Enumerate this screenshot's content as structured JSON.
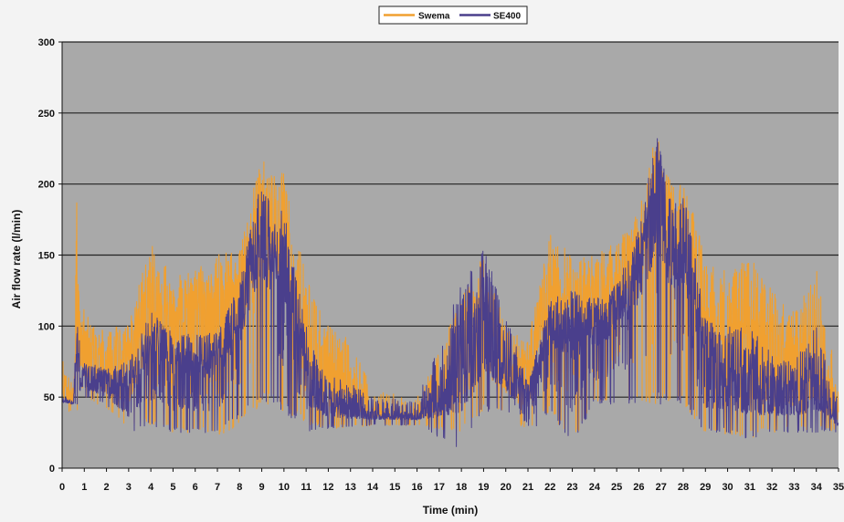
{
  "chart_data": {
    "type": "line",
    "xlabel": "Time (min)",
    "ylabel": "Air flow rate (l/min)",
    "xlim": [
      0,
      35
    ],
    "ylim": [
      0,
      300
    ],
    "x_ticks": [
      0,
      1,
      2,
      3,
      4,
      5,
      6,
      7,
      8,
      9,
      10,
      11,
      12,
      13,
      14,
      15,
      16,
      17,
      18,
      19,
      20,
      21,
      22,
      23,
      24,
      25,
      26,
      27,
      28,
      29,
      30,
      31,
      32,
      33,
      34,
      35
    ],
    "y_ticks": [
      0,
      50,
      100,
      150,
      200,
      250,
      300
    ],
    "grid": "horizontal",
    "legend_position": "top-center",
    "plot_background": "#a9a9a9",
    "page_background": "#f3f3f3",
    "series": [
      {
        "name": "Swema",
        "color": "#f0a030",
        "x": [
          0,
          0.5,
          0.7,
          0.8,
          1.0,
          2.0,
          3.0,
          4.0,
          5.0,
          6.0,
          7.0,
          8.0,
          9.0,
          9.5,
          10.0,
          11.0,
          12.0,
          13.0,
          14.0,
          16.0,
          18.0,
          19.0,
          20.0,
          21.0,
          22.0,
          23.0,
          24.0,
          25.0,
          26.0,
          26.8,
          27.5,
          28.0,
          29.0,
          30.0,
          31.0,
          32.0,
          33.0,
          34.0,
          35.0
        ],
        "low": [
          40,
          40,
          40,
          60,
          50,
          40,
          28,
          30,
          25,
          25,
          22,
          30,
          45,
          45,
          40,
          30,
          28,
          28,
          30,
          30,
          25,
          40,
          40,
          25,
          40,
          15,
          45,
          45,
          45,
          45,
          45,
          45,
          25,
          22,
          20,
          25,
          25,
          25,
          25
        ],
        "high": [
          80,
          60,
          220,
          110,
          112,
          95,
          105,
          160,
          135,
          140,
          150,
          155,
          225,
          205,
          210,
          135,
          100,
          90,
          55,
          50,
          120,
          150,
          100,
          90,
          165,
          150,
          150,
          160,
          180,
          240,
          200,
          215,
          145,
          140,
          150,
          125,
          110,
          140,
          60
        ],
        "freq": [
          3,
          2,
          1,
          4,
          4,
          5,
          6,
          7,
          7,
          7,
          7,
          8,
          9,
          9,
          8,
          6,
          4,
          3,
          2,
          2,
          5,
          6,
          4,
          7,
          8,
          8,
          8,
          8,
          9,
          9,
          9,
          8,
          6,
          6,
          6,
          5,
          4,
          4,
          2
        ]
      },
      {
        "name": "SE400",
        "color": "#4a3f8c",
        "x": [
          0,
          0.5,
          0.7,
          0.8,
          1.0,
          2.0,
          3.0,
          4.0,
          5.0,
          6.0,
          7.0,
          8.0,
          9.0,
          9.5,
          10.0,
          11.0,
          12.0,
          13.0,
          14.0,
          16.0,
          18.0,
          19.0,
          20.0,
          21.0,
          22.0,
          23.0,
          24.0,
          25.0,
          26.0,
          26.8,
          27.5,
          28.0,
          29.0,
          30.0,
          31.0,
          32.0,
          33.0,
          34.0,
          35.0
        ],
        "low": [
          45,
          45,
          45,
          55,
          50,
          45,
          25,
          30,
          25,
          25,
          25,
          35,
          45,
          45,
          40,
          25,
          28,
          28,
          30,
          30,
          12,
          40,
          40,
          20,
          40,
          15,
          45,
          45,
          45,
          45,
          45,
          45,
          25,
          25,
          20,
          25,
          25,
          25,
          25
        ],
        "high": [
          50,
          48,
          185,
          70,
          75,
          70,
          75,
          110,
          95,
          95,
          95,
          130,
          210,
          180,
          185,
          100,
          65,
          60,
          50,
          48,
          130,
          155,
          110,
          60,
          120,
          125,
          120,
          130,
          170,
          235,
          185,
          200,
          105,
          100,
          100,
          80,
          75,
          100,
          45
        ],
        "freq": [
          3,
          2,
          1,
          4,
          4,
          5,
          6,
          7,
          7,
          7,
          7,
          8,
          9,
          9,
          8,
          6,
          4,
          3,
          2,
          2,
          5,
          6,
          4,
          7,
          8,
          8,
          8,
          8,
          9,
          9,
          9,
          8,
          6,
          6,
          6,
          5,
          4,
          4,
          2
        ]
      }
    ]
  }
}
